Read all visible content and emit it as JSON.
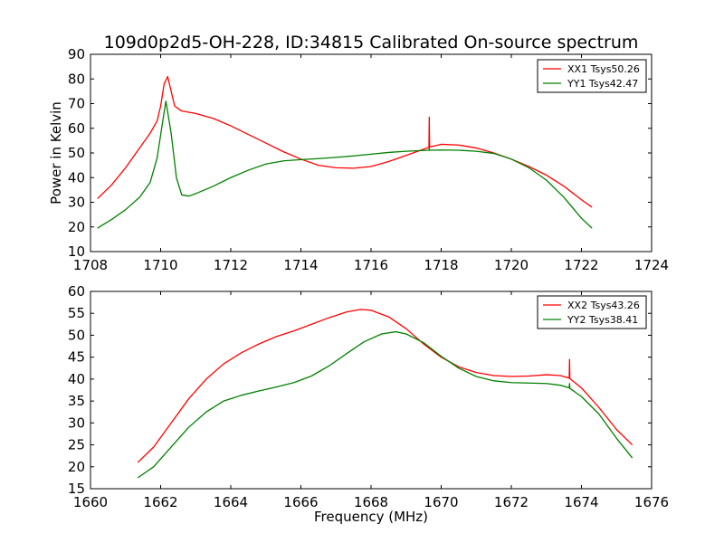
{
  "figure": {
    "title": "109d0p2d5-OH-228, ID:34815 Calibrated On-source spectrum"
  },
  "chart_data": [
    {
      "type": "line",
      "title": "109d0p2d5-OH-228, ID:34815 Calibrated On-source spectrum",
      "xlabel": "",
      "ylabel": "Power in Kelvin",
      "xlim": [
        1708,
        1724
      ],
      "ylim": [
        10,
        90
      ],
      "xticks": [
        "1708",
        "1710",
        "1712",
        "1714",
        "1716",
        "1718",
        "1720",
        "1722",
        "1724"
      ],
      "yticks": [
        "10",
        "20",
        "30",
        "40",
        "50",
        "60",
        "70",
        "80",
        "90"
      ],
      "legend": "top-right",
      "series": [
        {
          "name": "XX1 Tsys50.26",
          "color": "#ff0000",
          "points": [
            [
              1708.2,
              31.5
            ],
            [
              1708.6,
              37
            ],
            [
              1709.0,
              44
            ],
            [
              1709.4,
              52
            ],
            [
              1709.7,
              58
            ],
            [
              1709.9,
              63
            ],
            [
              1710.0,
              69
            ],
            [
              1710.1,
              78
            ],
            [
              1710.2,
              81
            ],
            [
              1710.3,
              75
            ],
            [
              1710.4,
              69
            ],
            [
              1710.6,
              67
            ],
            [
              1711.0,
              66
            ],
            [
              1711.5,
              64
            ],
            [
              1712.0,
              61
            ],
            [
              1712.5,
              57.5
            ],
            [
              1713.0,
              54
            ],
            [
              1713.5,
              50.5
            ],
            [
              1714.0,
              47.5
            ],
            [
              1714.5,
              45
            ],
            [
              1715.0,
              44
            ],
            [
              1715.5,
              43.8
            ],
            [
              1716.0,
              44.5
            ],
            [
              1716.5,
              46.5
            ],
            [
              1717.0,
              49
            ],
            [
              1717.5,
              51.5
            ],
            [
              1717.65,
              52.3
            ],
            [
              1717.66,
              64.5
            ],
            [
              1717.67,
              52.4
            ],
            [
              1718.0,
              53.5
            ],
            [
              1718.5,
              53.2
            ],
            [
              1719.0,
              52
            ],
            [
              1719.5,
              50
            ],
            [
              1720.0,
              47.5
            ],
            [
              1720.5,
              44.5
            ],
            [
              1721.0,
              41
            ],
            [
              1721.5,
              36.5
            ],
            [
              1722.0,
              31
            ],
            [
              1722.3,
              28
            ]
          ]
        },
        {
          "name": "YY1 Tsys42.47",
          "color": "#008000",
          "points": [
            [
              1708.2,
              19.5
            ],
            [
              1708.6,
              23
            ],
            [
              1709.0,
              27
            ],
            [
              1709.4,
              32
            ],
            [
              1709.7,
              38
            ],
            [
              1709.9,
              48
            ],
            [
              1710.05,
              62
            ],
            [
              1710.15,
              71
            ],
            [
              1710.3,
              58
            ],
            [
              1710.45,
              40
            ],
            [
              1710.6,
              33
            ],
            [
              1710.8,
              32.5
            ],
            [
              1711.0,
              33.5
            ],
            [
              1711.5,
              36.5
            ],
            [
              1712.0,
              40
            ],
            [
              1712.5,
              43
            ],
            [
              1713.0,
              45.5
            ],
            [
              1713.5,
              46.8
            ],
            [
              1714.0,
              47.3
            ],
            [
              1714.5,
              47.7
            ],
            [
              1715.0,
              48.2
            ],
            [
              1715.5,
              48.8
            ],
            [
              1716.0,
              49.5
            ],
            [
              1716.5,
              50.2
            ],
            [
              1717.0,
              50.7
            ],
            [
              1717.5,
              51
            ],
            [
              1717.65,
              51.1
            ],
            [
              1717.66,
              52
            ],
            [
              1717.67,
              51.1
            ],
            [
              1718.0,
              51.2
            ],
            [
              1718.5,
              51.1
            ],
            [
              1719.0,
              50.7
            ],
            [
              1719.5,
              49.8
            ],
            [
              1720.0,
              47.5
            ],
            [
              1720.5,
              44
            ],
            [
              1721.0,
              39
            ],
            [
              1721.5,
              32
            ],
            [
              1722.0,
              23.5
            ],
            [
              1722.3,
              19.5
            ]
          ]
        }
      ]
    },
    {
      "type": "line",
      "title": "",
      "xlabel": "Frequency (MHz)",
      "ylabel": "",
      "xlim": [
        1660,
        1676
      ],
      "ylim": [
        15,
        60
      ],
      "xticks": [
        "1660",
        "1662",
        "1664",
        "1666",
        "1668",
        "1670",
        "1672",
        "1674",
        "1676"
      ],
      "yticks": [
        "15",
        "20",
        "25",
        "30",
        "35",
        "40",
        "45",
        "50",
        "55",
        "60"
      ],
      "legend": "top-right",
      "series": [
        {
          "name": "XX2 Tsys43.26",
          "color": "#ff0000",
          "points": [
            [
              1661.35,
              21
            ],
            [
              1661.8,
              24.5
            ],
            [
              1662.3,
              30
            ],
            [
              1662.8,
              35.5
            ],
            [
              1663.3,
              40
            ],
            [
              1663.8,
              43.5
            ],
            [
              1664.3,
              46
            ],
            [
              1664.8,
              48
            ],
            [
              1665.3,
              49.7
            ],
            [
              1665.8,
              51
            ],
            [
              1666.3,
              52.5
            ],
            [
              1666.8,
              54
            ],
            [
              1667.3,
              55.3
            ],
            [
              1667.7,
              55.9
            ],
            [
              1668.0,
              55.7
            ],
            [
              1668.5,
              54.2
            ],
            [
              1669.0,
              51.5
            ],
            [
              1669.5,
              48
            ],
            [
              1670.0,
              45
            ],
            [
              1670.5,
              42.8
            ],
            [
              1671.0,
              41.5
            ],
            [
              1671.5,
              40.8
            ],
            [
              1672.0,
              40.6
            ],
            [
              1672.5,
              40.7
            ],
            [
              1673.0,
              41
            ],
            [
              1673.4,
              40.8
            ],
            [
              1673.65,
              40.2
            ],
            [
              1673.66,
              44.5
            ],
            [
              1673.67,
              40.1
            ],
            [
              1674.0,
              38
            ],
            [
              1674.5,
              33.5
            ],
            [
              1675.0,
              28.5
            ],
            [
              1675.45,
              25
            ]
          ]
        },
        {
          "name": "YY2 Tsys38.41",
          "color": "#008000",
          "points": [
            [
              1661.35,
              17.5
            ],
            [
              1661.8,
              20
            ],
            [
              1662.3,
              24.5
            ],
            [
              1662.8,
              29
            ],
            [
              1663.3,
              32.5
            ],
            [
              1663.8,
              35
            ],
            [
              1664.3,
              36.3
            ],
            [
              1664.8,
              37.3
            ],
            [
              1665.3,
              38.2
            ],
            [
              1665.8,
              39.2
            ],
            [
              1666.3,
              40.7
            ],
            [
              1666.8,
              43
            ],
            [
              1667.3,
              45.8
            ],
            [
              1667.8,
              48.5
            ],
            [
              1668.3,
              50.3
            ],
            [
              1668.7,
              50.8
            ],
            [
              1669.0,
              50.3
            ],
            [
              1669.5,
              48.3
            ],
            [
              1670.0,
              45.2
            ],
            [
              1670.5,
              42.5
            ],
            [
              1671.0,
              40.6
            ],
            [
              1671.5,
              39.6
            ],
            [
              1672.0,
              39.2
            ],
            [
              1672.5,
              39.1
            ],
            [
              1673.0,
              39
            ],
            [
              1673.4,
              38.6
            ],
            [
              1673.65,
              38
            ],
            [
              1673.66,
              39
            ],
            [
              1673.67,
              37.9
            ],
            [
              1674.0,
              36
            ],
            [
              1674.5,
              32
            ],
            [
              1675.0,
              26.5
            ],
            [
              1675.45,
              22
            ]
          ]
        }
      ]
    }
  ]
}
